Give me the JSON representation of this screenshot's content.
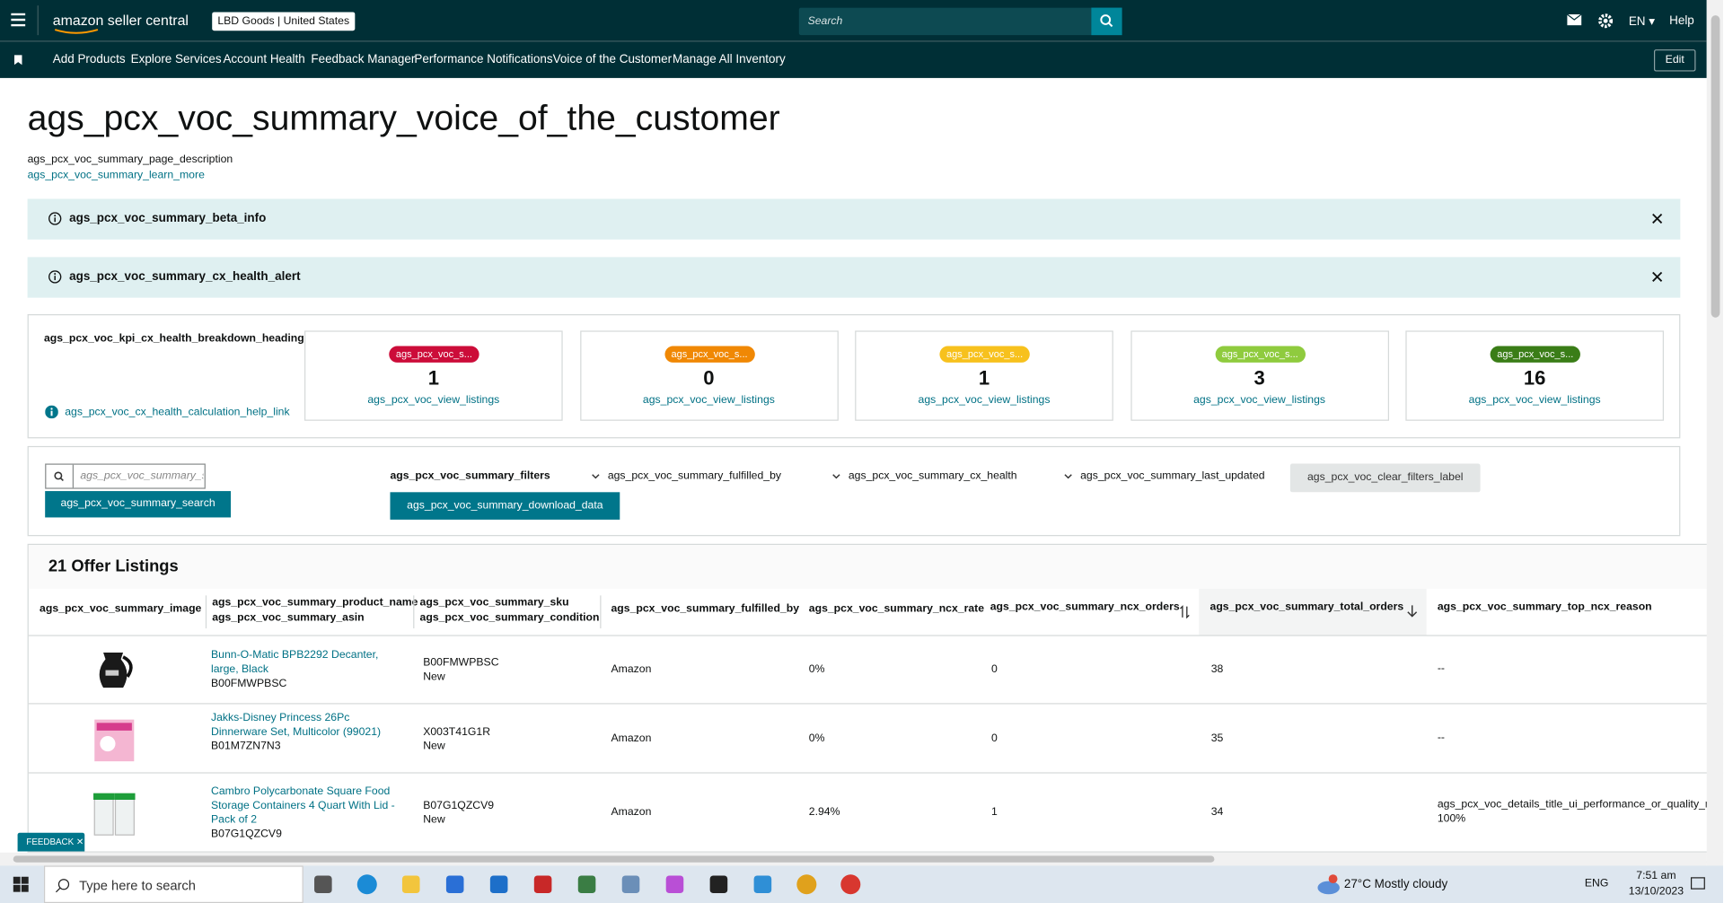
{
  "header": {
    "brand": "amazon seller central",
    "store": "LBD Goods",
    "region": "United States",
    "search_placeholder": "Search",
    "language": "EN",
    "help": "Help"
  },
  "nav": {
    "items": [
      "Add Products",
      "Explore Services",
      "Account Health",
      "Feedback Manager",
      "Performance Notifications",
      "Voice of the Customer",
      "Manage All Inventory"
    ],
    "edit": "Edit"
  },
  "page": {
    "title": "ags_pcx_voc_summary_voice_of_the_customer",
    "description": "ags_pcx_voc_summary_page_description",
    "learn_more": "ags_pcx_voc_summary_learn_more"
  },
  "alerts": [
    "ags_pcx_voc_summary_beta_info",
    "ags_pcx_voc_summary_cx_health_alert"
  ],
  "kpi": {
    "heading": "ags_pcx_voc_kpi_cx_health_breakdown_heading",
    "help_link": "ags_pcx_voc_cx_health_calculation_help_link",
    "cards": [
      {
        "badge": "ags_pcx_voc_s...",
        "color": "#cc0c39",
        "count": 1,
        "link": "ags_pcx_voc_view_listings"
      },
      {
        "badge": "ags_pcx_voc_s...",
        "color": "#f08804",
        "count": 0,
        "link": "ags_pcx_voc_view_listings"
      },
      {
        "badge": "ags_pcx_voc_s...",
        "color": "#f7c11d",
        "count": 1,
        "link": "ags_pcx_voc_view_listings"
      },
      {
        "badge": "ags_pcx_voc_s...",
        "color": "#8fcb3e",
        "count": 3,
        "link": "ags_pcx_voc_view_listings"
      },
      {
        "badge": "ags_pcx_voc_s...",
        "color": "#3a7d17",
        "count": 16,
        "link": "ags_pcx_voc_view_listings"
      }
    ]
  },
  "filters": {
    "search_placeholder": "ags_pcx_voc_summary_s",
    "search_button": "ags_pcx_voc_summary_search",
    "label": "ags_pcx_voc_summary_filters",
    "download": "ags_pcx_voc_summary_download_data",
    "dropdowns": [
      "ags_pcx_voc_summary_fulfilled_by",
      "ags_pcx_voc_summary_cx_health",
      "ags_pcx_voc_summary_last_updated"
    ],
    "clear": "ags_pcx_voc_clear_filters_label"
  },
  "table": {
    "heading": "21 Offer Listings",
    "columns": [
      [
        "ags_pcx_voc_summary_image"
      ],
      [
        "ags_pcx_voc_summary_product_name",
        "ags_pcx_voc_summary_asin"
      ],
      [
        "ags_pcx_voc_summary_sku",
        "ags_pcx_voc_summary_condition"
      ],
      [
        "ags_pcx_voc_summary_fulfilled_by"
      ],
      [
        "ags_pcx_voc_summary_ncx_rate"
      ],
      [
        "ags_pcx_voc_summary_ncx_orders"
      ],
      [
        "ags_pcx_voc_summary_total_orders"
      ],
      [
        "ags_pcx_voc_summary_top_ncx_reason"
      ]
    ],
    "rows": [
      {
        "product_name": "Bunn-O-Matic BPB2292 Decanter, large, Black",
        "asin": "B00FMWPBSC",
        "sku": "B00FMWPBSC",
        "condition": "New",
        "fulfilled_by": "Amazon",
        "ncx_rate": "0%",
        "ncx_orders": 0,
        "total_orders": 38,
        "top_ncx_reason": [
          "--"
        ]
      },
      {
        "product_name": "Jakks-Disney Princess 26Pc Dinnerware Set, Multicolor (99021)",
        "asin": "B01M7ZN7N3",
        "sku": "X003T41G1R",
        "condition": "New",
        "fulfilled_by": "Amazon",
        "ncx_rate": "0%",
        "ncx_orders": 0,
        "total_orders": 35,
        "top_ncx_reason": [
          "--"
        ]
      },
      {
        "product_name": "Cambro Polycarbonate Square Food Storage Containers 4 Quart With Lid - Pack of 2",
        "asin": "B07G1QZCV9",
        "sku": "B07G1QZCV9",
        "condition": "New",
        "fulfilled_by": "Amazon",
        "ncx_rate": "2.94%",
        "ncx_orders": 1,
        "total_orders": 34,
        "top_ncx_reason": [
          "ags_pcx_voc_details_title_ui_performance_or_quality_no",
          "100%"
        ]
      }
    ]
  },
  "feedback": "FEEDBACK",
  "taskbar": {
    "search": "Type here to search",
    "temperature": "27°C",
    "weather": "Mostly cloudy",
    "language": "ENG",
    "time": "7:51 am",
    "date": "13/10/2023"
  }
}
